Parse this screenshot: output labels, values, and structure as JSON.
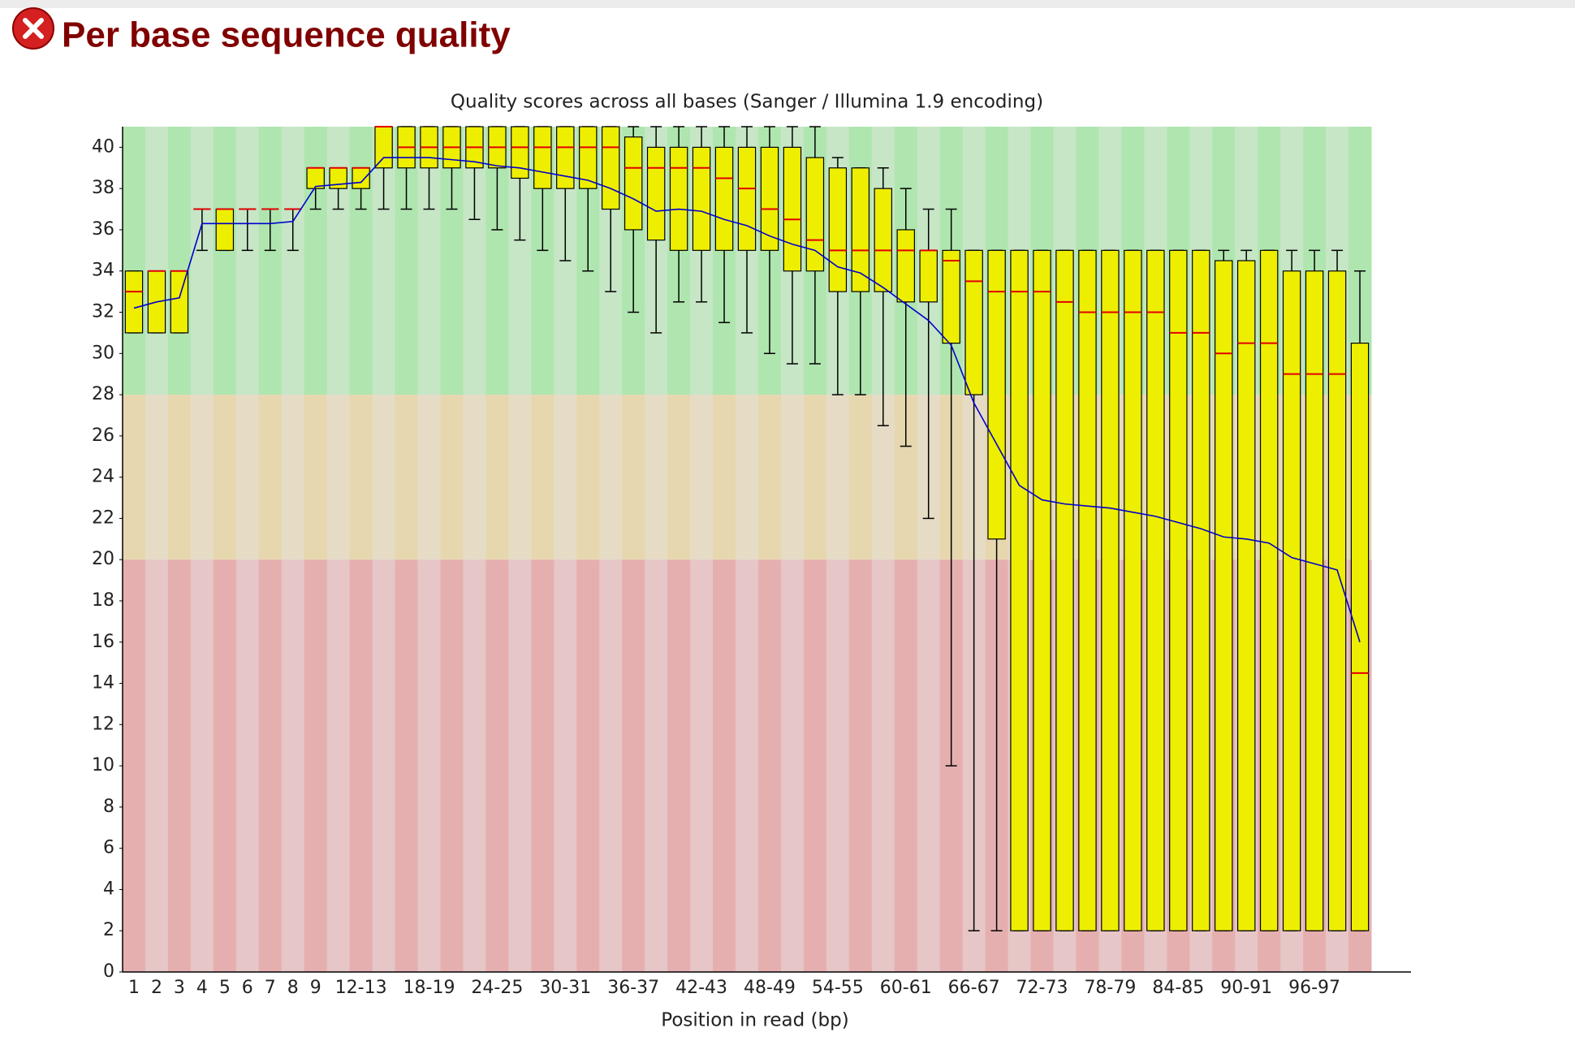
{
  "header": {
    "title": "Per base sequence quality"
  },
  "chart_data": {
    "type": "box",
    "title": "Quality scores across all bases (Sanger / Illumina 1.9 encoding)",
    "x_label": "Position in read (bp)",
    "categories": [
      "1",
      "2",
      "3",
      "4",
      "5",
      "6",
      "7",
      "8",
      "9",
      null,
      "12-13",
      null,
      null,
      "18-19",
      null,
      null,
      "24-25",
      null,
      null,
      "30-31",
      null,
      null,
      "36-37",
      null,
      null,
      "42-43",
      null,
      null,
      "48-49",
      null,
      null,
      "54-55",
      null,
      null,
      "60-61",
      null,
      null,
      "66-67",
      null,
      null,
      "72-73",
      null,
      null,
      "78-79",
      null,
      null,
      "84-85",
      null,
      null,
      "90-91",
      null,
      null,
      "96-97",
      null,
      null
    ],
    "lower_whisker": [
      31,
      31,
      31,
      35,
      35,
      35,
      35,
      35,
      37,
      37,
      37,
      37,
      37,
      37,
      37,
      36.5,
      36,
      35.5,
      35,
      34.5,
      34,
      33,
      32,
      31,
      32.5,
      32.5,
      31.5,
      31,
      30,
      29.5,
      29.5,
      28,
      28,
      26.5,
      25.5,
      22,
      10,
      2,
      2,
      2,
      2,
      2,
      2,
      2,
      2,
      2,
      2,
      2,
      2,
      2,
      2,
      2,
      2,
      2,
      2
    ],
    "q1": [
      31,
      31,
      31,
      37,
      35,
      37,
      37,
      37,
      38,
      38,
      38,
      39,
      39,
      39,
      39,
      39,
      39,
      38.5,
      38,
      38,
      38,
      37,
      36,
      35.5,
      35,
      35,
      35,
      35,
      35,
      34,
      34,
      33,
      33,
      33,
      32.5,
      32.5,
      30.5,
      28,
      21,
      2,
      2,
      2,
      2,
      2,
      2,
      2,
      2,
      2,
      2,
      2,
      2,
      2,
      2,
      2,
      2
    ],
    "median": [
      33,
      34,
      34,
      37,
      37,
      37,
      37,
      37,
      39,
      39,
      39,
      41,
      40,
      40,
      40,
      40,
      40,
      40,
      40,
      40,
      40,
      40,
      39,
      39,
      39,
      39,
      38.5,
      38,
      37,
      36.5,
      35.5,
      35,
      35,
      35,
      35,
      35,
      34.5,
      33.5,
      33,
      33,
      33,
      32.5,
      32,
      32,
      32,
      32,
      31,
      31,
      30,
      30.5,
      30.5,
      29,
      29,
      29,
      14.5
    ],
    "q3": [
      34,
      34,
      34,
      37,
      37,
      37,
      37,
      37,
      39,
      39,
      39,
      41,
      41,
      41,
      41,
      41,
      41,
      41,
      41,
      41,
      41,
      41,
      40.5,
      40,
      40,
      40,
      40,
      40,
      40,
      40,
      39.5,
      39,
      39,
      38,
      36,
      35,
      35,
      35,
      35,
      35,
      35,
      35,
      35,
      35,
      35,
      35,
      35,
      35,
      34.5,
      34.5,
      35,
      34,
      34,
      34,
      30.5
    ],
    "upper_whisker": [
      34,
      34,
      34,
      37,
      37,
      37,
      37,
      37,
      39,
      39,
      39,
      41,
      41,
      41,
      41,
      41,
      41,
      41,
      41,
      41,
      41,
      41,
      41,
      41,
      41,
      41,
      41,
      41,
      41,
      41,
      41,
      39.5,
      39,
      39,
      38,
      37,
      37,
      35,
      35,
      35,
      35,
      35,
      35,
      35,
      35,
      35,
      35,
      35,
      35,
      35,
      35,
      35,
      35,
      35,
      34
    ],
    "mean": [
      32.2,
      32.5,
      32.7,
      36.3,
      36.3,
      36.3,
      36.3,
      36.4,
      38.1,
      38.2,
      38.3,
      39.5,
      39.5,
      39.5,
      39.4,
      39.3,
      39.1,
      39.0,
      38.8,
      38.6,
      38.4,
      38.0,
      37.5,
      36.9,
      37.0,
      36.9,
      36.5,
      36.2,
      35.7,
      35.3,
      35.0,
      34.2,
      33.9,
      33.2,
      32.4,
      31.6,
      30.4,
      27.6,
      25.6,
      23.6,
      22.9,
      22.7,
      22.6,
      22.5,
      22.3,
      22.1,
      21.8,
      21.5,
      21.1,
      21.0,
      20.8,
      20.1,
      19.8,
      19.5,
      16.0
    ],
    "box_color": "#eeee00",
    "median_color": "#e00000",
    "mean_color": "#0000cc",
    "quality_bands": [
      {
        "from": 28,
        "to": 41,
        "colors": [
          "#afe6af",
          "#c6e6c6"
        ]
      },
      {
        "from": 20,
        "to": 28,
        "colors": [
          "#e6d7af",
          "#e6dcc6"
        ]
      },
      {
        "from": 0,
        "to": 20,
        "colors": [
          "#e6afaf",
          "#e6c6c6"
        ]
      }
    ],
    "ylim": [
      0,
      41
    ],
    "yticks": [
      0,
      2,
      4,
      6,
      8,
      10,
      12,
      14,
      16,
      18,
      20,
      22,
      24,
      26,
      28,
      30,
      32,
      34,
      36,
      38,
      40
    ]
  }
}
